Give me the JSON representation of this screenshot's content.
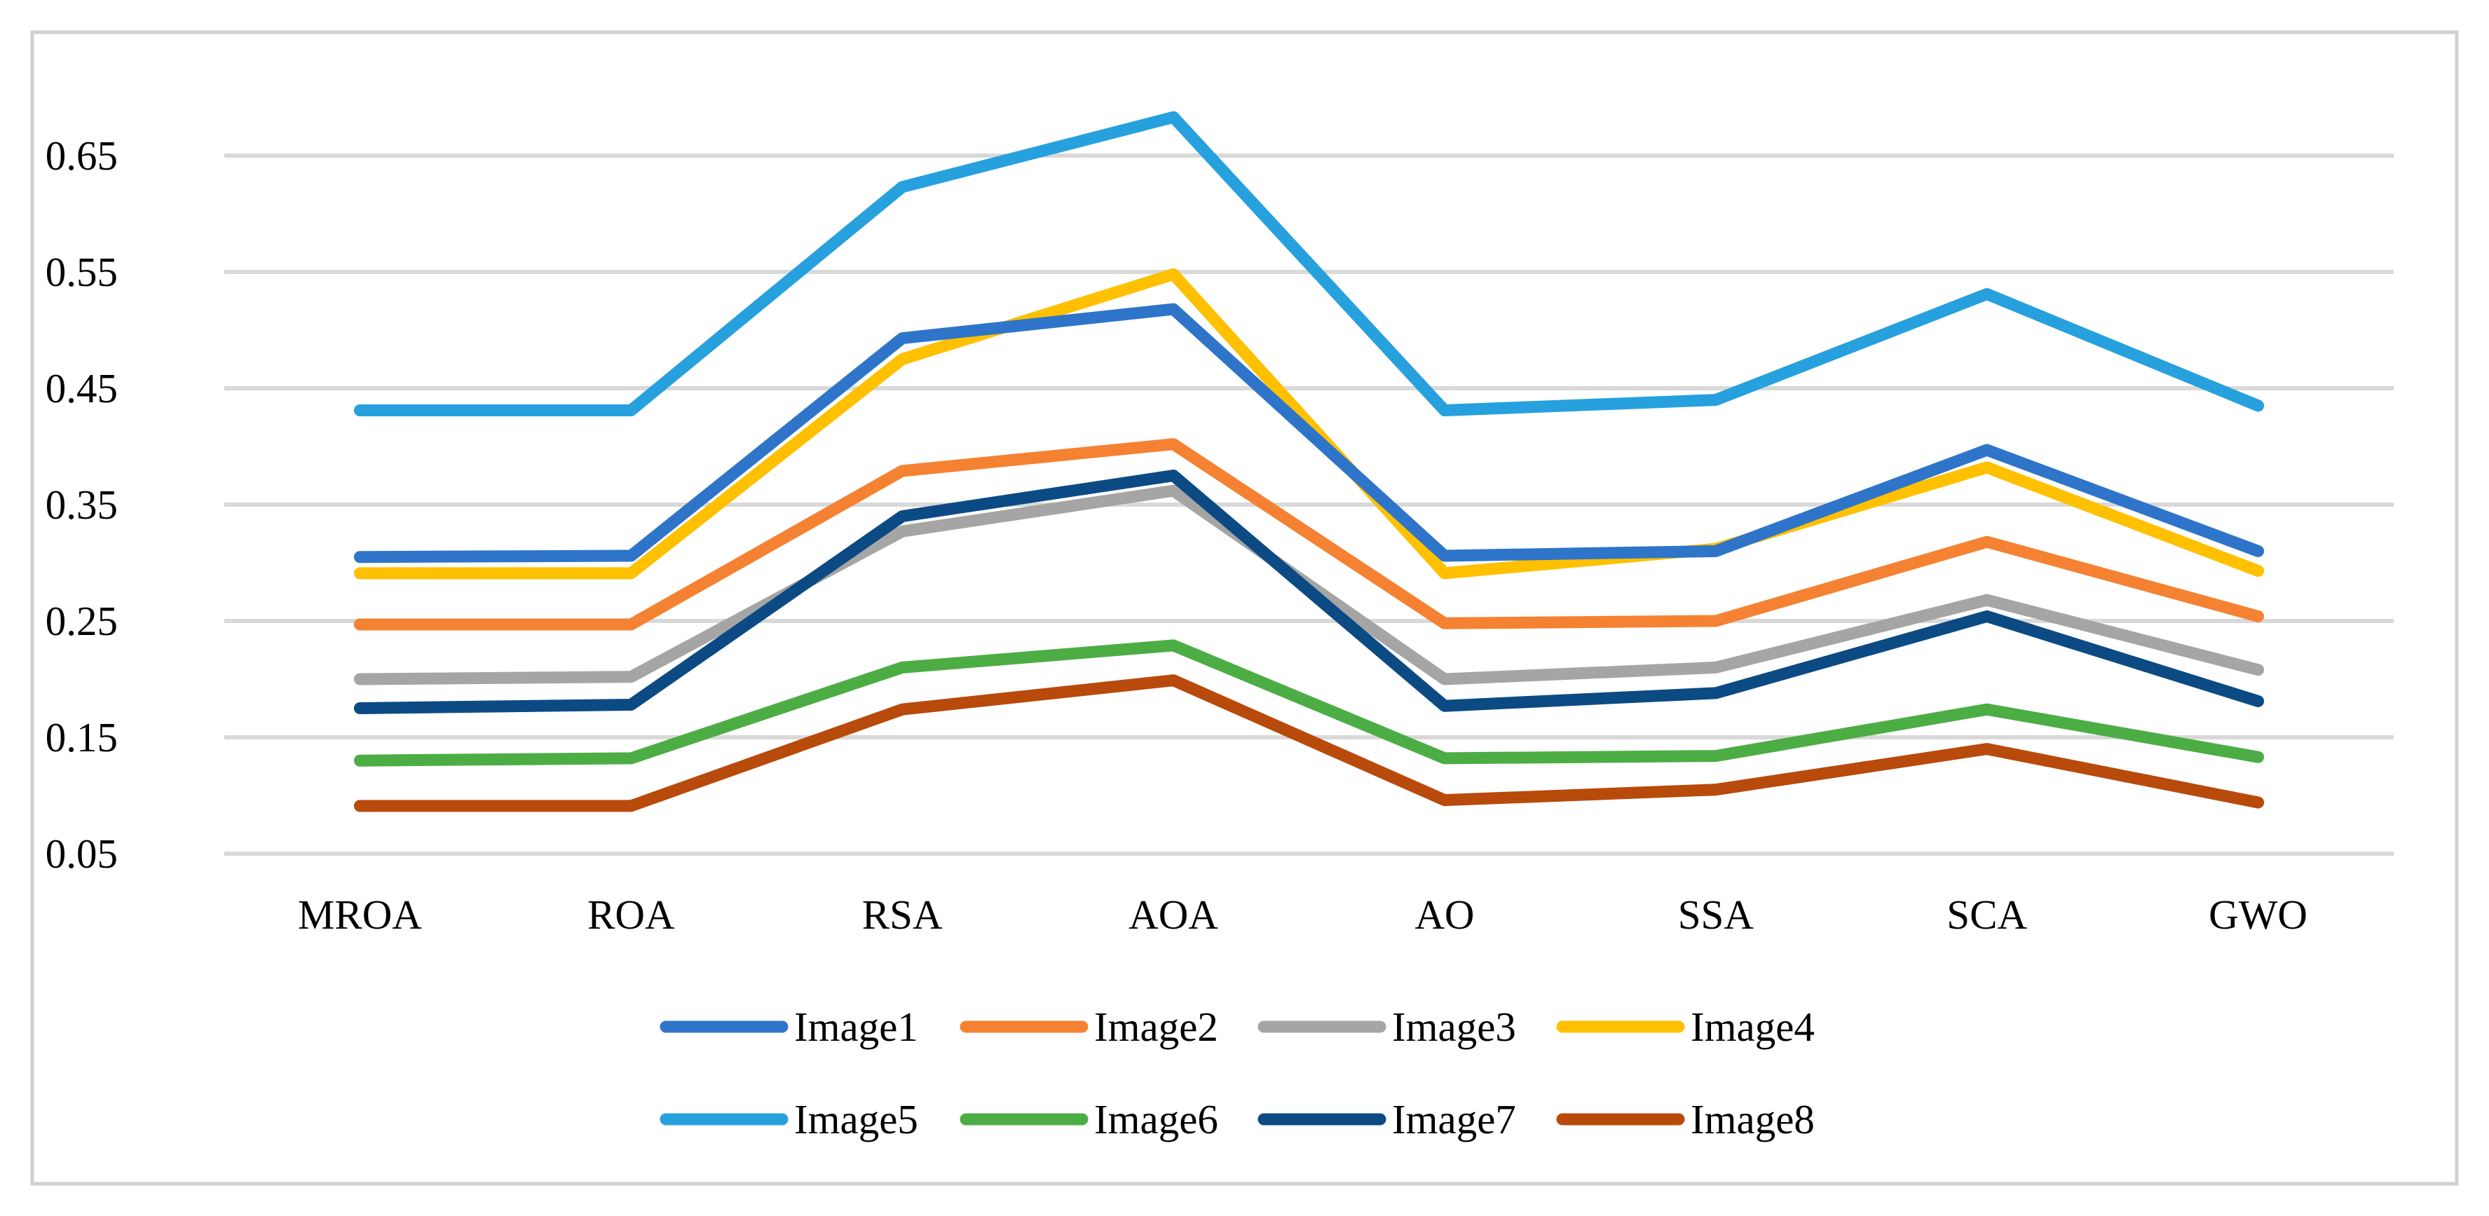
{
  "chart_data": {
    "type": "line",
    "title": "",
    "xlabel": "",
    "ylabel": "",
    "categories": [
      "MROA",
      "ROA",
      "RSA",
      "AOA",
      "AO",
      "SSA",
      "SCA",
      "GWO"
    ],
    "y_ticks": [
      "0.05",
      "0.15",
      "0.25",
      "0.35",
      "0.45",
      "0.55",
      "0.65"
    ],
    "ylim": [
      0.05,
      0.65
    ],
    "grid": true,
    "legend_position": "bottom",
    "series": [
      {
        "name": "Image1",
        "color": "#2E75C9",
        "values": [
          0.305,
          0.306,
          0.493,
          0.518,
          0.306,
          0.31,
          0.397,
          0.31
        ]
      },
      {
        "name": "Image2",
        "color": "#F58232",
        "values": [
          0.247,
          0.247,
          0.379,
          0.402,
          0.248,
          0.25,
          0.318,
          0.254
        ]
      },
      {
        "name": "Image3",
        "color": "#A5A5A5",
        "values": [
          0.2,
          0.202,
          0.327,
          0.362,
          0.2,
          0.21,
          0.268,
          0.208
        ]
      },
      {
        "name": "Image4",
        "color": "#FFC000",
        "values": [
          0.291,
          0.291,
          0.475,
          0.548,
          0.291,
          0.312,
          0.382,
          0.293
        ]
      },
      {
        "name": "Image5",
        "color": "#27A0DE",
        "values": [
          0.431,
          0.431,
          0.623,
          0.683,
          0.431,
          0.44,
          0.531,
          0.435
        ]
      },
      {
        "name": "Image6",
        "color": "#4CAD45",
        "values": [
          0.13,
          0.132,
          0.21,
          0.229,
          0.132,
          0.134,
          0.174,
          0.133
        ]
      },
      {
        "name": "Image7",
        "color": "#0C4A84",
        "values": [
          0.175,
          0.178,
          0.34,
          0.375,
          0.177,
          0.188,
          0.254,
          0.181
        ]
      },
      {
        "name": "Image8",
        "color": "#B84A0C",
        "values": [
          0.091,
          0.091,
          0.174,
          0.199,
          0.096,
          0.105,
          0.14,
          0.094
        ]
      }
    ]
  }
}
